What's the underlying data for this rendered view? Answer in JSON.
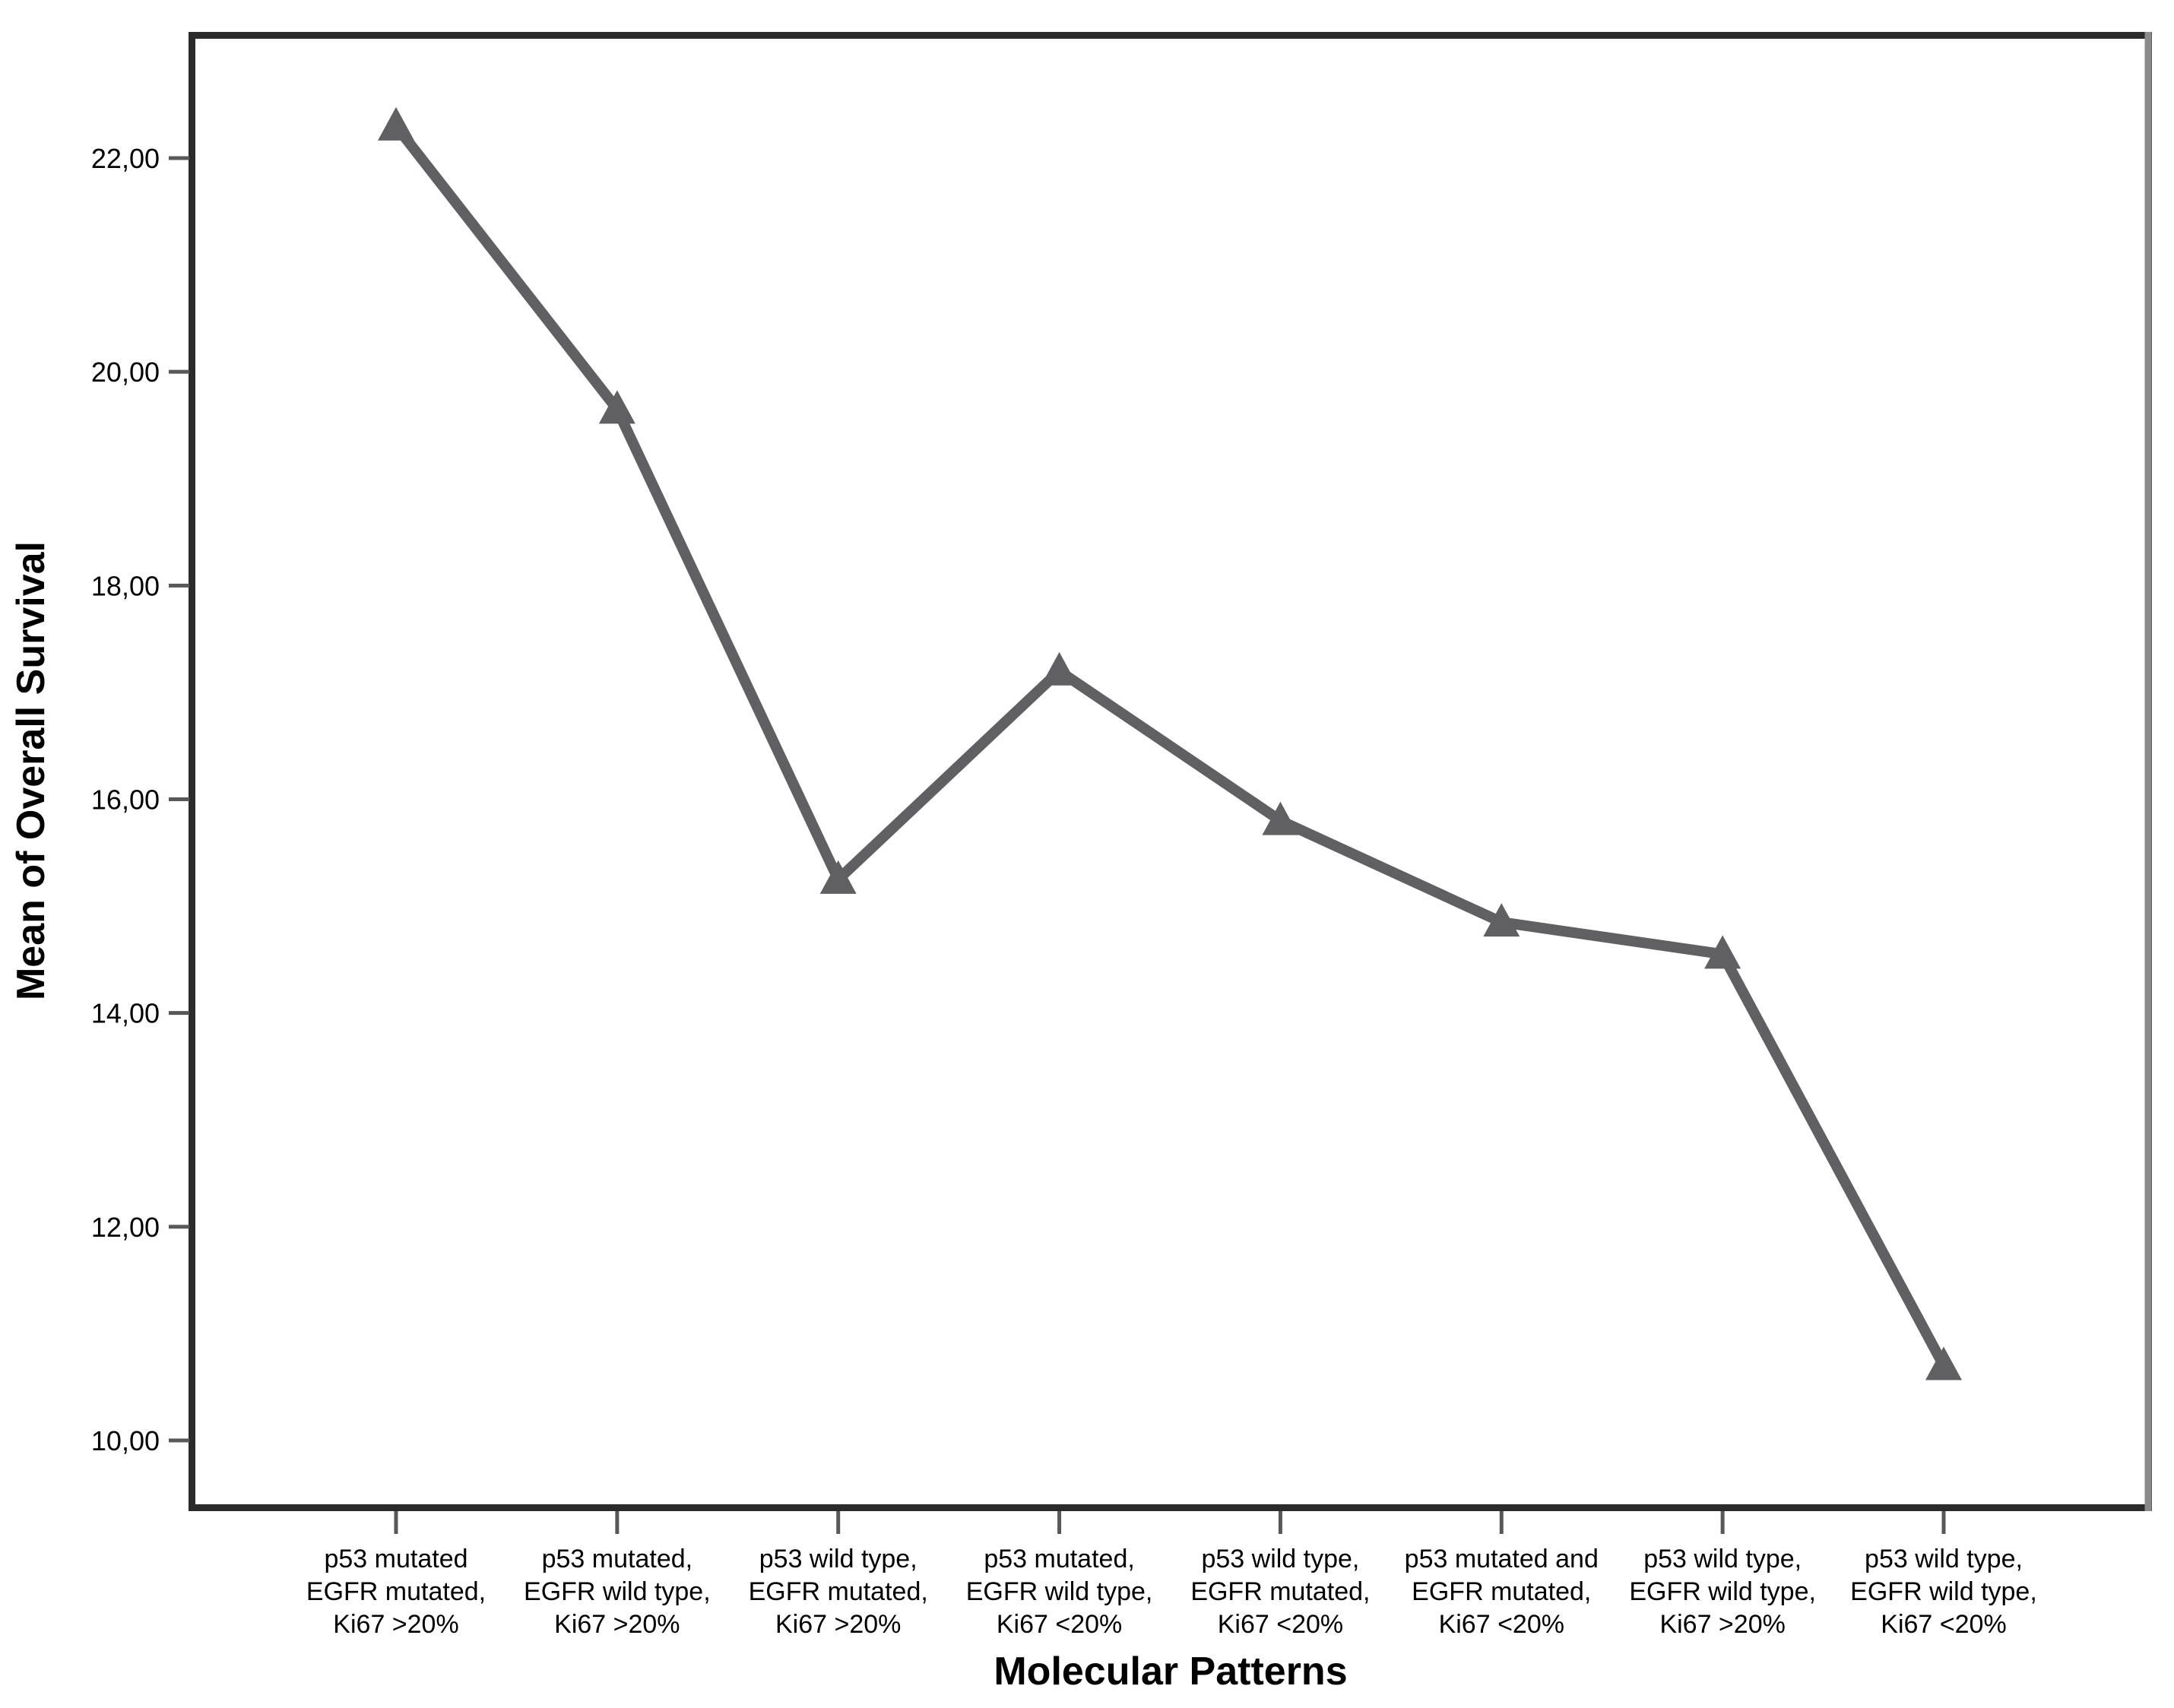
{
  "figure": {
    "background": "#ffffff"
  },
  "chart_data": {
    "type": "line",
    "title": "",
    "xlabel": "Molecular Patterns",
    "ylabel": "Mean of Overall Survival",
    "categories": [
      [
        "p53 mutated",
        "EGFR mutated,",
        "Ki67 >20%"
      ],
      [
        "p53 mutated,",
        "EGFR wild type,",
        "Ki67 >20%"
      ],
      [
        "p53 wild type,",
        "EGFR mutated,",
        "Ki67 >20%"
      ],
      [
        "p53 mutated,",
        "EGFR wild type,",
        "Ki67 <20%"
      ],
      [
        "p53 wild type,",
        "EGFR mutated,",
        "Ki67 <20%"
      ],
      [
        "p53 mutated and",
        "EGFR mutated,",
        "Ki67 <20%"
      ],
      [
        "p53 wild type,",
        "EGFR wild type,",
        "Ki67 >20%"
      ],
      [
        "p53 wild type,",
        "EGFR wild type,",
        "Ki67 <20%"
      ]
    ],
    "values": [
      22.3,
      19.65,
      15.25,
      17.2,
      15.8,
      14.85,
      14.55,
      10.7
    ],
    "y_axis": {
      "tick_values": [
        22,
        20,
        18,
        16,
        14,
        12,
        10
      ],
      "tick_labels": [
        "22,00",
        "20,00",
        "18,00",
        "16,00",
        "14,00",
        "12,00",
        "10,00"
      ],
      "decimal_comma": true,
      "ylim": [
        9.3,
        23.2
      ]
    },
    "grid": false,
    "legend": "none",
    "marker_shape": "triangle-up",
    "colors": {
      "line": "#606062",
      "marker": "#606062",
      "frame": "#2b2b2b",
      "frame_right_edge": "#8a8a8a",
      "tick": "#58585a",
      "text": "#000000"
    }
  }
}
